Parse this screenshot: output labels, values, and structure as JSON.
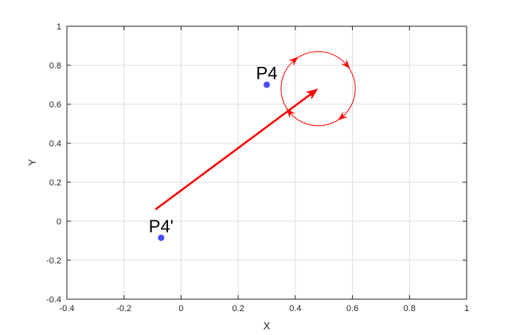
{
  "chart_data": {
    "type": "scatter",
    "title": "",
    "xlabel": "X",
    "ylabel": "Y",
    "xlim": [
      -0.4,
      1
    ],
    "ylim": [
      -0.4,
      1
    ],
    "xticks": [
      -0.4,
      -0.2,
      0,
      0.2,
      0.4,
      0.6,
      0.8,
      1
    ],
    "yticks": [
      -0.4,
      -0.2,
      0,
      0.2,
      0.4,
      0.6,
      0.8,
      1
    ],
    "xtick_labels": [
      "-0.4",
      "-0.2",
      "0",
      "0.2",
      "0.4",
      "0.6",
      "0.8",
      "1"
    ],
    "ytick_labels": [
      "-0.4",
      "-0.2",
      "0",
      "0.2",
      "0.4",
      "0.6",
      "0.8",
      "1"
    ],
    "grid": true,
    "points": [
      {
        "label": "P4",
        "x": 0.3,
        "y": 0.7,
        "color": "#4b4bff"
      },
      {
        "label": "P4'",
        "x": -0.07,
        "y": -0.085,
        "color": "#4b4bff"
      }
    ],
    "arrow": {
      "from": [
        -0.09,
        0.06
      ],
      "to": [
        0.48,
        0.68
      ],
      "color": "#ff0000"
    },
    "rotation": {
      "center": [
        0.48,
        0.68
      ],
      "radius": 0.13,
      "direction": "clockwise",
      "color": "#ff0000",
      "arrowheads": 4
    }
  }
}
